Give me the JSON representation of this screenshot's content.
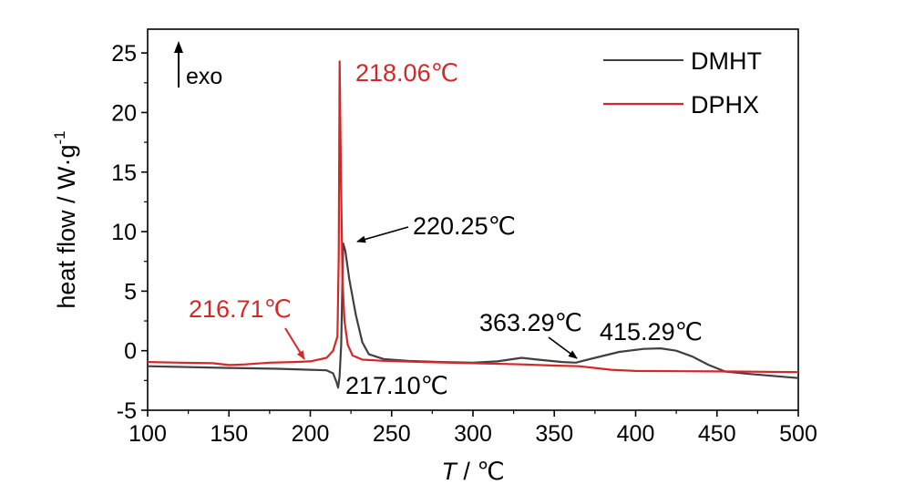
{
  "chart_data": {
    "type": "line",
    "xlabel_italic": "T",
    "xlabel_rest": " / ℃",
    "ylabel": "heat flow / W·g",
    "ylabel_sup": "-1",
    "xlim": [
      100,
      500
    ],
    "ylim": [
      -5,
      27
    ],
    "xticks": [
      100,
      150,
      200,
      250,
      300,
      350,
      400,
      450,
      500
    ],
    "yticks": [
      -5,
      0,
      5,
      10,
      15,
      20,
      25
    ],
    "grid": false,
    "legend_position": "top-right",
    "exo_label": "exo",
    "series": [
      {
        "name": "DMHT",
        "color": "#404040",
        "points": [
          [
            100,
            -1.3
          ],
          [
            150,
            -1.45
          ],
          [
            180,
            -1.52
          ],
          [
            200,
            -1.6
          ],
          [
            210,
            -1.65
          ],
          [
            214,
            -1.9
          ],
          [
            216,
            -2.6
          ],
          [
            217.1,
            -3.1
          ],
          [
            218,
            -2.2
          ],
          [
            219,
            0.5
          ],
          [
            220.25,
            9.0
          ],
          [
            221.5,
            8.4
          ],
          [
            224,
            6.0
          ],
          [
            228,
            3.0
          ],
          [
            232,
            0.7
          ],
          [
            236,
            -0.3
          ],
          [
            245,
            -0.7
          ],
          [
            260,
            -0.85
          ],
          [
            280,
            -0.95
          ],
          [
            300,
            -1.0
          ],
          [
            315,
            -0.9
          ],
          [
            330,
            -0.6
          ],
          [
            340,
            -0.75
          ],
          [
            355,
            -0.95
          ],
          [
            363.29,
            -1.0
          ],
          [
            375,
            -0.6
          ],
          [
            390,
            -0.1
          ],
          [
            405,
            0.15
          ],
          [
            415.29,
            0.2
          ],
          [
            425,
            0.0
          ],
          [
            435,
            -0.5
          ],
          [
            445,
            -1.2
          ],
          [
            455,
            -1.75
          ],
          [
            470,
            -1.95
          ],
          [
            500,
            -2.3
          ]
        ]
      },
      {
        "name": "DPHX",
        "color": "#d62728",
        "points": [
          [
            100,
            -0.95
          ],
          [
            120,
            -1.0
          ],
          [
            140,
            -1.05
          ],
          [
            150,
            -1.2
          ],
          [
            160,
            -1.15
          ],
          [
            175,
            -1.0
          ],
          [
            190,
            -0.95
          ],
          [
            200,
            -0.9
          ],
          [
            210,
            -0.6
          ],
          [
            214,
            0.0
          ],
          [
            216.71,
            1.2
          ],
          [
            217.5,
            8.0
          ],
          [
            218.06,
            24.3
          ],
          [
            218.8,
            15.0
          ],
          [
            219.8,
            6.0
          ],
          [
            221,
            2.5
          ],
          [
            223,
            0.5
          ],
          [
            226,
            -0.4
          ],
          [
            232,
            -0.75
          ],
          [
            245,
            -0.85
          ],
          [
            270,
            -0.95
          ],
          [
            300,
            -1.05
          ],
          [
            330,
            -1.15
          ],
          [
            350,
            -1.25
          ],
          [
            365,
            -1.3
          ],
          [
            375,
            -1.45
          ],
          [
            385,
            -1.6
          ],
          [
            400,
            -1.7
          ],
          [
            430,
            -1.72
          ],
          [
            460,
            -1.75
          ],
          [
            500,
            -1.8
          ]
        ]
      }
    ],
    "annotations": [
      {
        "id": "a1",
        "text": "218.06℃",
        "color": "#d62728"
      },
      {
        "id": "a2",
        "text": "220.25℃",
        "color": "#000000"
      },
      {
        "id": "a3",
        "text": "216.71℃",
        "color": "#d62728"
      },
      {
        "id": "a4",
        "text": "217.10℃",
        "color": "#000000"
      },
      {
        "id": "a5",
        "text": "363.29℃",
        "color": "#000000"
      },
      {
        "id": "a6",
        "text": "415.29℃",
        "color": "#000000"
      }
    ]
  }
}
